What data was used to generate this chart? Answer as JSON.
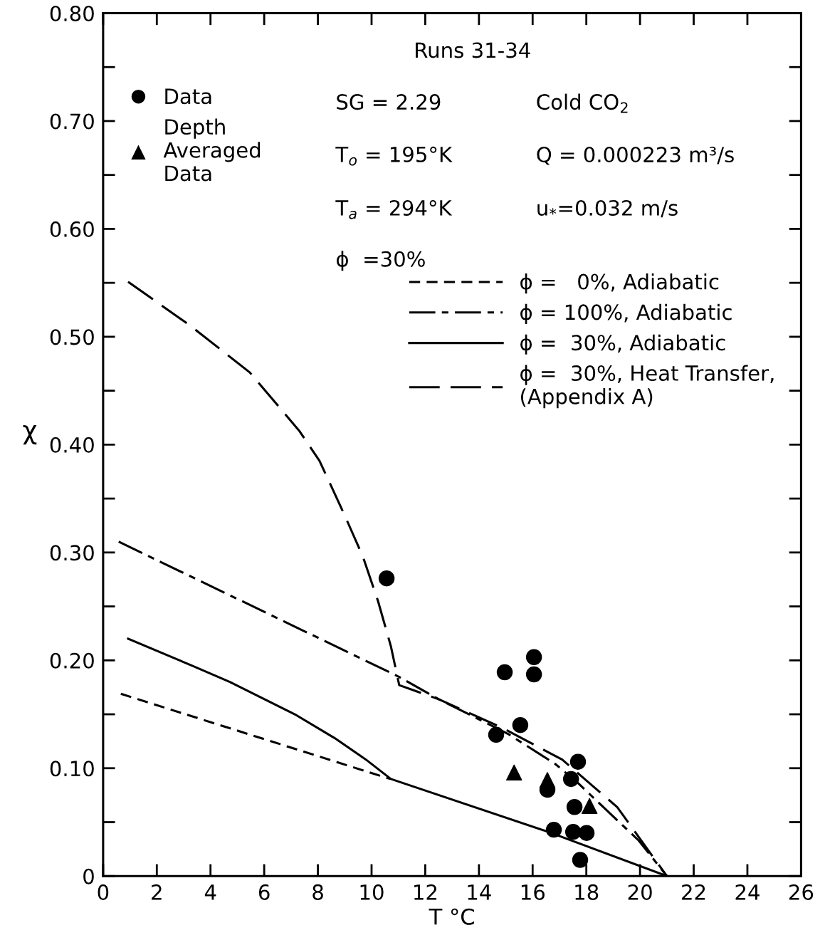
{
  "chart_data": {
    "type": "line",
    "xlabel": "T °C",
    "ylabel": "χ",
    "xlim": [
      0,
      26
    ],
    "xticks": [
      0,
      2,
      4,
      6,
      8,
      10,
      12,
      14,
      16,
      18,
      20,
      22,
      24,
      26
    ],
    "ylim": [
      0,
      0.8
    ],
    "yticks": [
      {
        "value": 0,
        "label": "0"
      },
      {
        "value": 0.1,
        "label": "0.10"
      },
      {
        "value": 0.2,
        "label": "0.20"
      },
      {
        "value": 0.3,
        "label": "0.30"
      },
      {
        "value": 0.4,
        "label": "0.40"
      },
      {
        "value": 0.5,
        "label": "0.50"
      },
      {
        "value": 0.6,
        "label": "0.60"
      },
      {
        "value": 0.7,
        "label": "0.70"
      },
      {
        "value": 0.8,
        "label": "0.80"
      }
    ],
    "grid": false,
    "legend": "top right",
    "annotations": [
      "Runs 31-34",
      "SG = 2.29",
      "T$_{o}$ = 195°K",
      "T$_{a}$ = 294°K",
      "ϕ  =30%",
      "Cold CO$_{2}$",
      "Q = 0.000223 m³/s",
      "u$_{*}$=0.032 m/s"
    ],
    "series": [
      {
        "name": "Data",
        "type": "scatter",
        "marker": "circle",
        "color": "#000000",
        "x": [
          10.56,
          14.96,
          16.05,
          16.05,
          15.54,
          14.64,
          17.69,
          17.43,
          16.55,
          17.56,
          16.79,
          17.51,
          18.01,
          17.77
        ],
        "values": [
          0.276,
          0.189,
          0.203,
          0.187,
          0.14,
          0.131,
          0.106,
          0.09,
          0.08,
          0.064,
          0.043,
          0.041,
          0.04,
          0.015
        ]
      },
      {
        "name": "Depth\nAveraged\nData",
        "type": "scatter",
        "marker": "triangle",
        "color": "#000000",
        "x": [
          15.31,
          16.55,
          18.12
        ],
        "values": [
          0.096,
          0.089,
          0.065
        ]
      },
      {
        "name": "ϕ =   0%, Adiabatic",
        "line_style": "dashed",
        "color": "#000000",
        "x": [
          0.66,
          10.7
        ],
        "values": [
          0.169,
          0.09
        ]
      },
      {
        "name": "ϕ = 100%, Adiabatic",
        "line_style": "dashdot",
        "color": "#000000",
        "x": [
          0.58,
          11.0,
          12.5,
          15.07,
          16.84,
          17.7,
          19.95,
          21.0
        ],
        "values": [
          0.31,
          0.185,
          0.164,
          0.132,
          0.104,
          0.086,
          0.033,
          0.0
        ]
      },
      {
        "name": "ϕ =  30%, Adiabatic",
        "line_style": "solid",
        "color": "#000000",
        "x": [
          0.93,
          3.32,
          4.72,
          7.14,
          8.62,
          9.79,
          10.72,
          16.58,
          21.0
        ],
        "values": [
          0.22,
          0.195,
          0.18,
          0.15,
          0.128,
          0.108,
          0.09,
          0.041,
          0.0
        ]
      },
      {
        "name": "ϕ =  30%, Heat Transfer,\n(Appendix A)",
        "line_style": "longdash",
        "color": "#000000",
        "x": [
          0.93,
          3.26,
          5.46,
          7.3,
          8.06,
          8.97,
          9.68,
          10.24,
          10.72,
          11.03,
          12.5,
          14.9,
          17.1,
          19.15,
          21.0
        ],
        "values": [
          0.551,
          0.51,
          0.467,
          0.413,
          0.385,
          0.336,
          0.296,
          0.255,
          0.213,
          0.177,
          0.164,
          0.137,
          0.108,
          0.064,
          0.0
        ]
      }
    ]
  }
}
